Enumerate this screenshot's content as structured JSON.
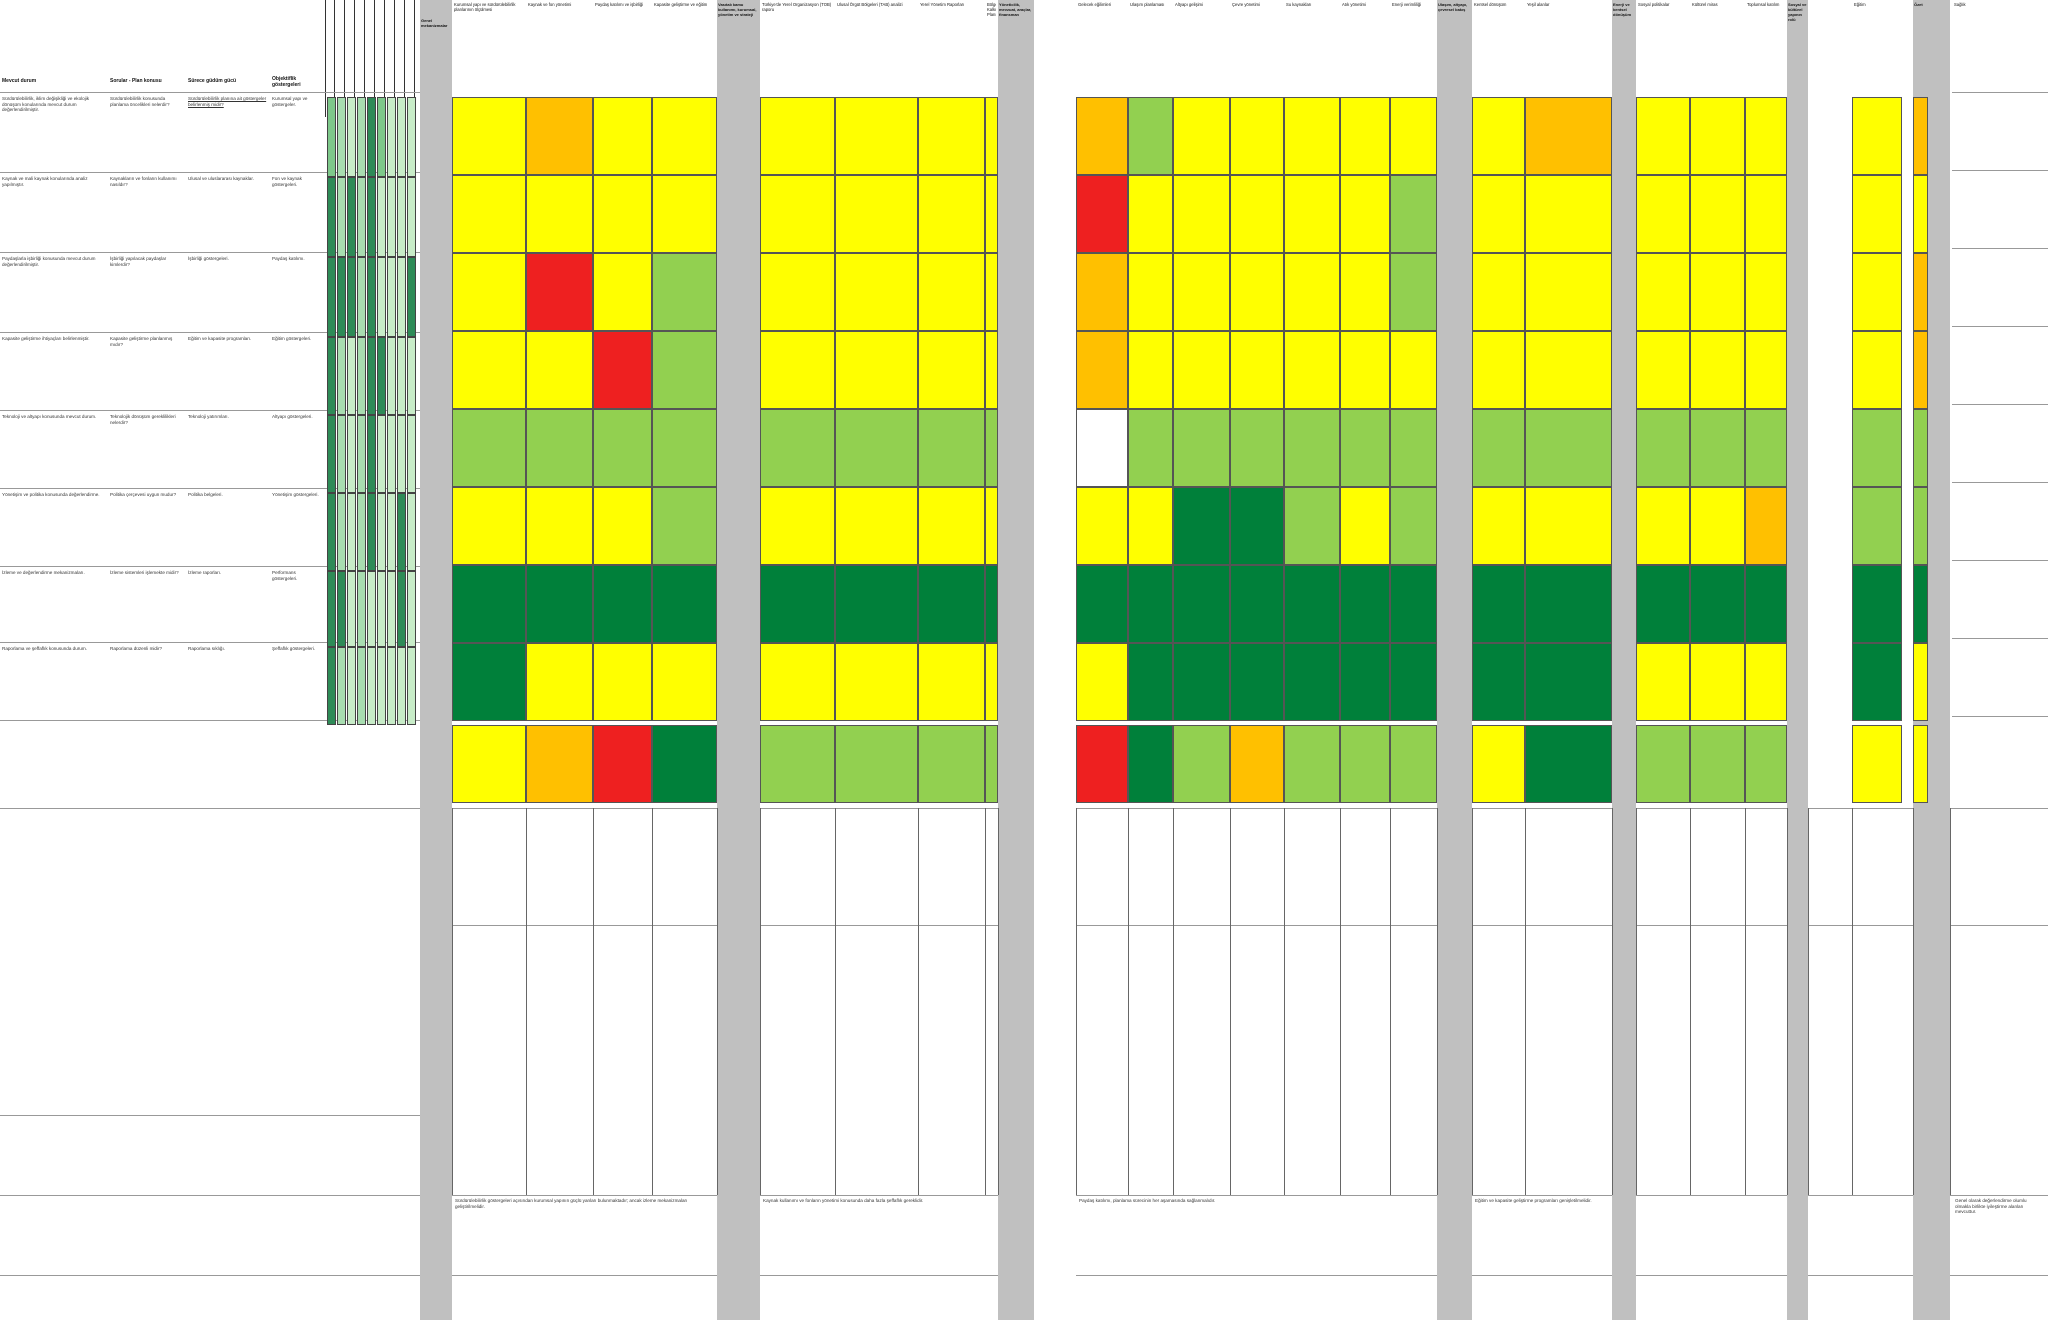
{
  "colors": {
    "red": "#ee2020",
    "orange": "#ffc000",
    "yellow": "#ffff00",
    "lightgreen": "#92d050",
    "darkgreen": "#00803a",
    "separator": "#c0c0c0"
  },
  "left_table": {
    "headers": [
      "Mevcut durum",
      "Sorular - Plan konusu",
      "Sürece güdüm gücü",
      "Objektiflik göstergeleri"
    ],
    "rows": [
      [
        "Sürdürülebilirlik, iklim değişikliği ve ekolojik dönüşüm konularında mevcut durum değerlendirilmiştir.",
        "Sürdürülebilirlik konusunda planlama öncelikleri nelerdir?",
        "Sürdürülebilirlik planına ait göstergeler belirlenmiş midir?",
        "Kurumsal yapı ve göstergeler."
      ],
      [
        "Kaynak ve mali kaynak konularında analiz yapılmıştır.",
        "Kaynakların ve fonların kullanımı nasıldır?",
        "Ulusal ve uluslararası kaynaklar.",
        "Fon ve kaynak göstergeleri."
      ],
      [
        "Paydaşlarla işbirliği konusunda mevcut durum değerlendirilmiştir.",
        "İşbirliği yapılacak paydaşlar kimlerdir?",
        "İşbirliği göstergeleri.",
        "Paydaş katılımı."
      ],
      [
        "Kapasite geliştirme ihtiyaçları belirlenmiştir.",
        "Kapasite geliştirme planlanmış mıdır?",
        "Eğitim ve kapasite programları.",
        "Eğitim göstergeleri."
      ],
      [
        "Teknoloji ve altyapı konusunda mevcut durum.",
        "Teknolojik dönüşüm gereklilikleri nelerdir?",
        "Teknoloji yatırımları.",
        "Altyapı göstergeleri."
      ],
      [
        "Yönetişim ve politika konusunda değerlendirme.",
        "Politika çerçevesi uygun mudur?",
        "Politika belgeleri.",
        "Yönetişim göstergeleri."
      ],
      [
        "İzleme ve değerlendirme mekanizmaları.",
        "İzleme sistemleri işlemekte midir?",
        "İzleme raporları.",
        "Performans göstergeleri."
      ],
      [
        "Raporlama ve şeffaflık konusunda durum.",
        "Raporlama düzenli midir?",
        "Raporlama sıklığı.",
        "Şeffaflık göstergeleri."
      ]
    ]
  },
  "group_headers": [
    "Genel mekanizmalar",
    "Vasıtalı kamu kullanımı, kurumsal, yönetim ve strateji",
    "Yöneticilik, mevzuat, araçlar, finansman",
    "Ulaşım, altyapı, çevresel bakış",
    "Enerji ve kentsel dönüşüm",
    "Sosyal ve kültürel yapının rolü",
    "Özet"
  ],
  "col_headers": [
    "Kurumsal yapı ve sürdürülebilirlik planlarının ölçülmesi",
    "Kaynak ve fon yönetimi",
    "Paydaş katılımı ve işbirliği",
    "Kapasite geliştirme ve eğitim",
    "Türkiye'de Yerel Organizasyon (TOB) raporu",
    "Ulusal Örgüt Bölgeleri (TAB) analizi",
    "Yerel Yönetim Raporları",
    "Bölgesel Kalkınma Planı",
    "Gelecek eğilimleri",
    "Ulaşım planlaması",
    "Altyapı gelişimi",
    "Çevre yönetimi",
    "Su kaynakları",
    "Atık yönetimi",
    "Enerji verimliliği",
    "Kentsel dönüşüm",
    "Yeşil alanlar",
    "Sosyal politikalar",
    "Kültürel miras",
    "Toplumsal katılım",
    "Eğitim",
    "Sağlık",
    "Genel değerlendirme"
  ],
  "summary_notes": [
    "Sürdürülebilirlik göstergeleri açısından kurumsal yapının güçlü yanları bulunmaktadır; ancak izleme mekanizmaları geliştirilmelidir.",
    "Kaynak kullanımı ve fonların yönetimi konusunda daha fazla şeffaflık gereklidir.",
    "Paydaş katılımı, planlama sürecinin her aşamasında sağlanmalıdır.",
    "Eğitim ve kapasite geliştirme programları genişletilmelidir.",
    "Genel olarak değerlendirme olumlu olmakla birlikte iyileştirme alanları mevcuttur."
  ]
}
